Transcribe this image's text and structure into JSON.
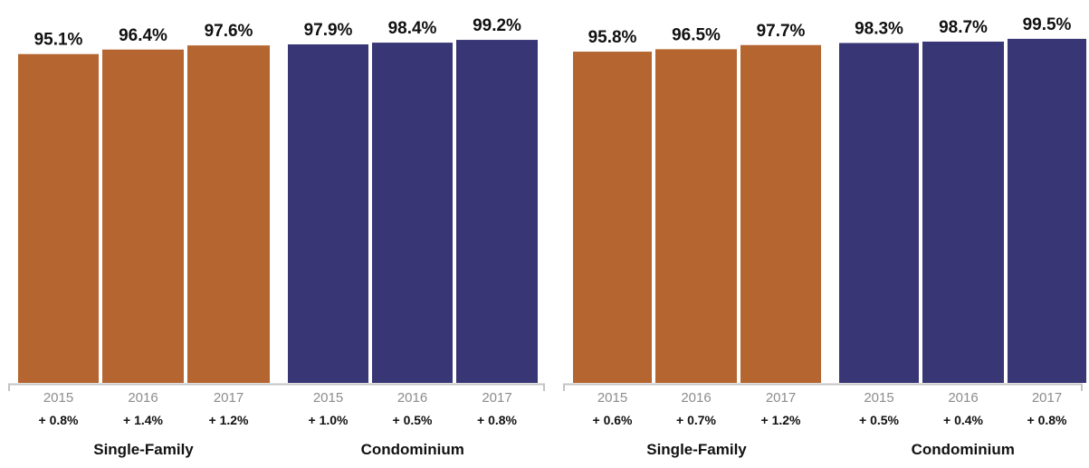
{
  "colors": {
    "single_family": "#b5652f",
    "condominium": "#383674",
    "axis": "#c4c4c4"
  },
  "chart_data": [
    {
      "type": "bar",
      "title": "",
      "xlabel": "",
      "ylabel": "",
      "ylim": [
        0,
        100
      ],
      "groups": [
        {
          "name": "Single-Family",
          "color_key": "single_family",
          "bars": [
            {
              "year": "2015",
              "value": 95.1,
              "label": "95.1%",
              "change": "+ 0.8%"
            },
            {
              "year": "2016",
              "value": 96.4,
              "label": "96.4%",
              "change": "+ 1.4%"
            },
            {
              "year": "2017",
              "value": 97.6,
              "label": "97.6%",
              "change": "+ 1.2%"
            }
          ]
        },
        {
          "name": "Condominium",
          "color_key": "condominium",
          "bars": [
            {
              "year": "2015",
              "value": 97.9,
              "label": "97.9%",
              "change": "+ 1.0%"
            },
            {
              "year": "2016",
              "value": 98.4,
              "label": "98.4%",
              "change": "+ 0.5%"
            },
            {
              "year": "2017",
              "value": 99.2,
              "label": "99.2%",
              "change": "+ 0.8%"
            }
          ]
        }
      ]
    },
    {
      "type": "bar",
      "title": "",
      "xlabel": "",
      "ylabel": "",
      "ylim": [
        0,
        100
      ],
      "groups": [
        {
          "name": "Single-Family",
          "color_key": "single_family",
          "bars": [
            {
              "year": "2015",
              "value": 95.8,
              "label": "95.8%",
              "change": "+ 0.6%"
            },
            {
              "year": "2016",
              "value": 96.5,
              "label": "96.5%",
              "change": "+ 0.7%"
            },
            {
              "year": "2017",
              "value": 97.7,
              "label": "97.7%",
              "change": "+ 1.2%"
            }
          ]
        },
        {
          "name": "Condominium",
          "color_key": "condominium",
          "bars": [
            {
              "year": "2015",
              "value": 98.3,
              "label": "98.3%",
              "change": "+ 0.5%"
            },
            {
              "year": "2016",
              "value": 98.7,
              "label": "98.7%",
              "change": "+ 0.4%"
            },
            {
              "year": "2017",
              "value": 99.5,
              "label": "99.5%",
              "change": "+ 0.8%"
            }
          ]
        }
      ]
    }
  ]
}
